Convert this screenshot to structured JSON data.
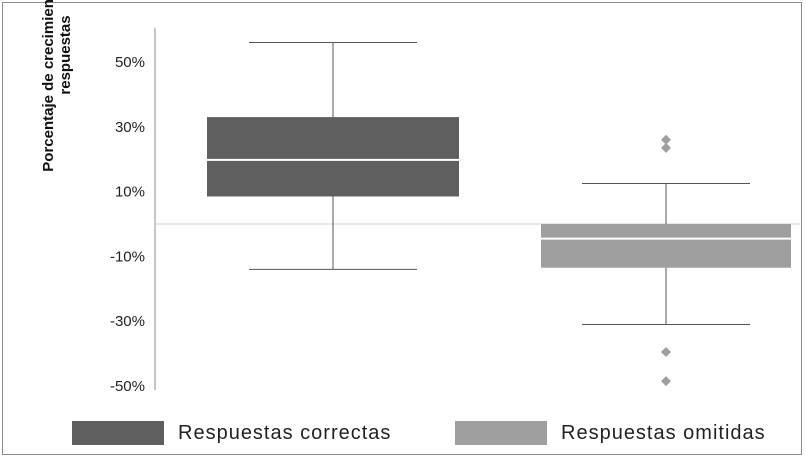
{
  "chart_data": {
    "type": "box",
    "ylabel": "Porcentaje de crecimiento en las respuestas",
    "ylim": [
      -0.5,
      0.5
    ],
    "yticks": [
      "50%",
      "30%",
      "10%",
      "-10%",
      "-30%",
      "-50%"
    ],
    "series": [
      {
        "name": "Respuestas correctas",
        "color": "#5f5f5f",
        "min": -0.14,
        "q1": 0.085,
        "median": 0.198,
        "q3": 0.33,
        "max": 0.56,
        "outliers": []
      },
      {
        "name": "Respuestas omitidas",
        "color": "#9f9f9f",
        "min": -0.31,
        "q1": -0.135,
        "median": -0.045,
        "q3": 0.0,
        "max": 0.125,
        "outliers": [
          0.26,
          0.235,
          -0.395,
          -0.485
        ]
      }
    ]
  }
}
